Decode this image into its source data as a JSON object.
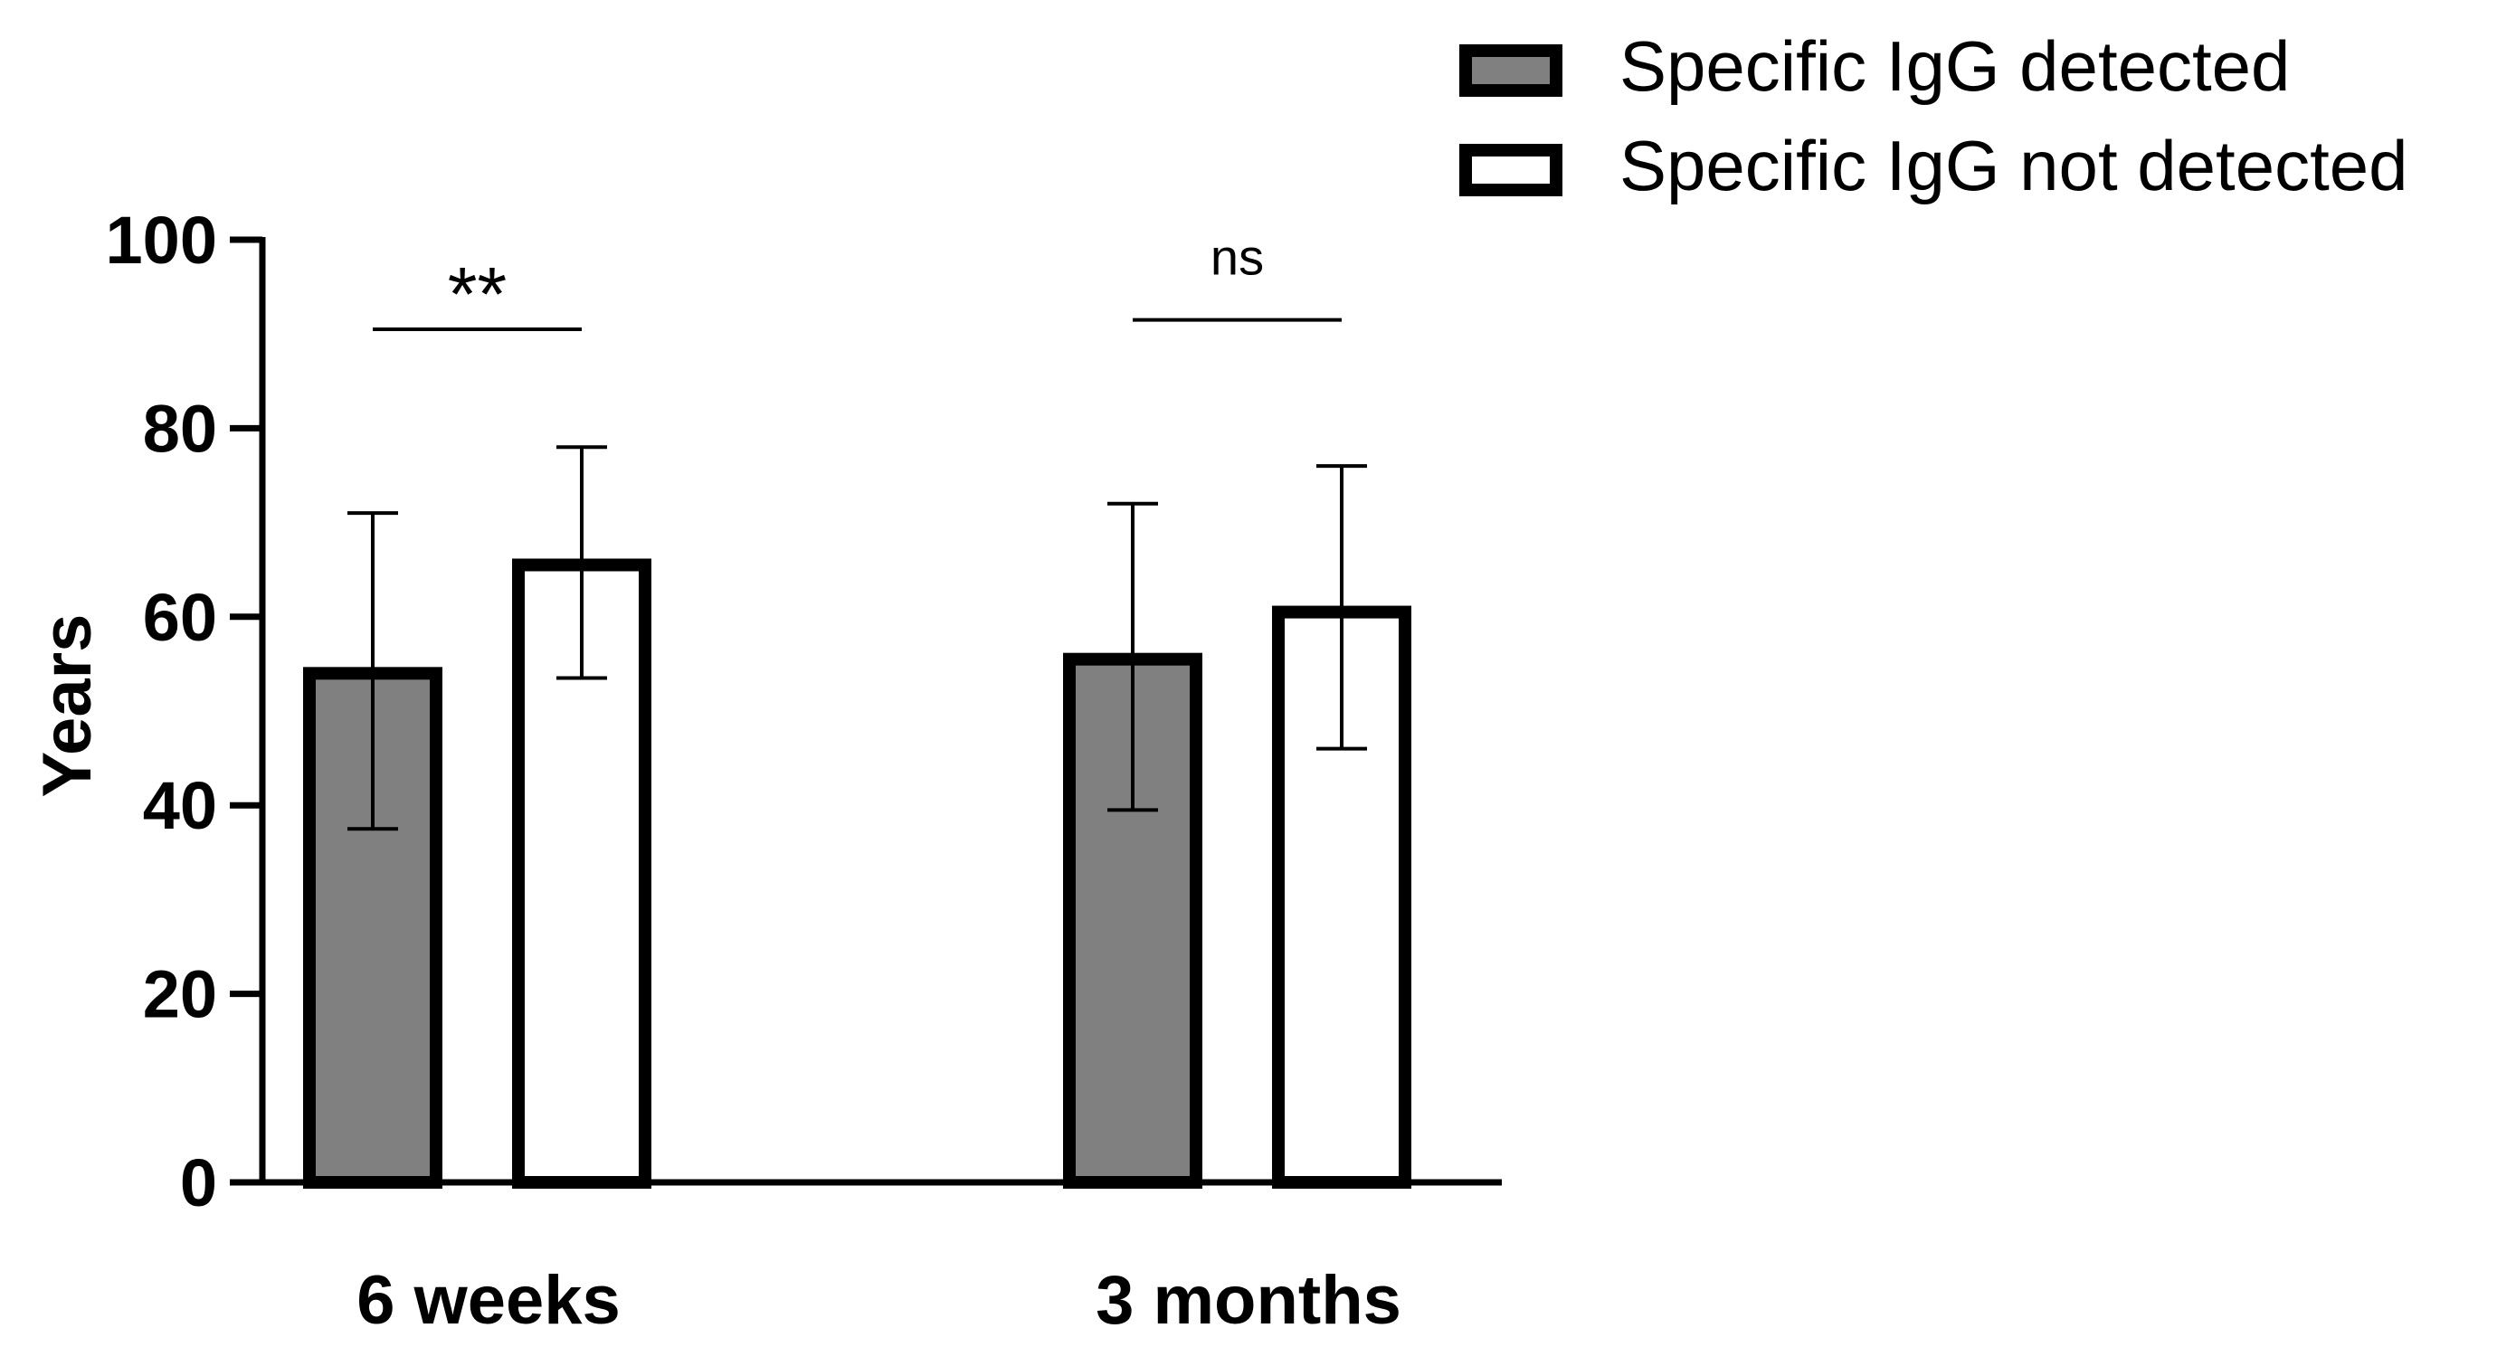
{
  "chart_data": {
    "type": "bar",
    "categories": [
      "6 weeks",
      "3 months"
    ],
    "series": [
      {
        "name": "Specific IgG detected",
        "fill": "#808080",
        "values": [
          54,
          55.5
        ],
        "error_low": [
          37.5,
          39.5
        ],
        "error_high": [
          71,
          72
        ]
      },
      {
        "name": "Specific IgG not detected",
        "fill": "#ffffff",
        "values": [
          65.5,
          60.5
        ],
        "error_low": [
          53.5,
          46
        ],
        "error_high": [
          78,
          76
        ]
      }
    ],
    "ylabel": "Years",
    "xlabel": "",
    "ylim": [
      0,
      100
    ],
    "yticks": [
      "0",
      "20",
      "40",
      "60",
      "80",
      "100"
    ],
    "significance": [
      {
        "category": "6 weeks",
        "label": "**",
        "y": 90.5
      },
      {
        "category": "3 months",
        "label": "ns",
        "y": 91.5
      }
    ],
    "legend_position": "top-right"
  }
}
